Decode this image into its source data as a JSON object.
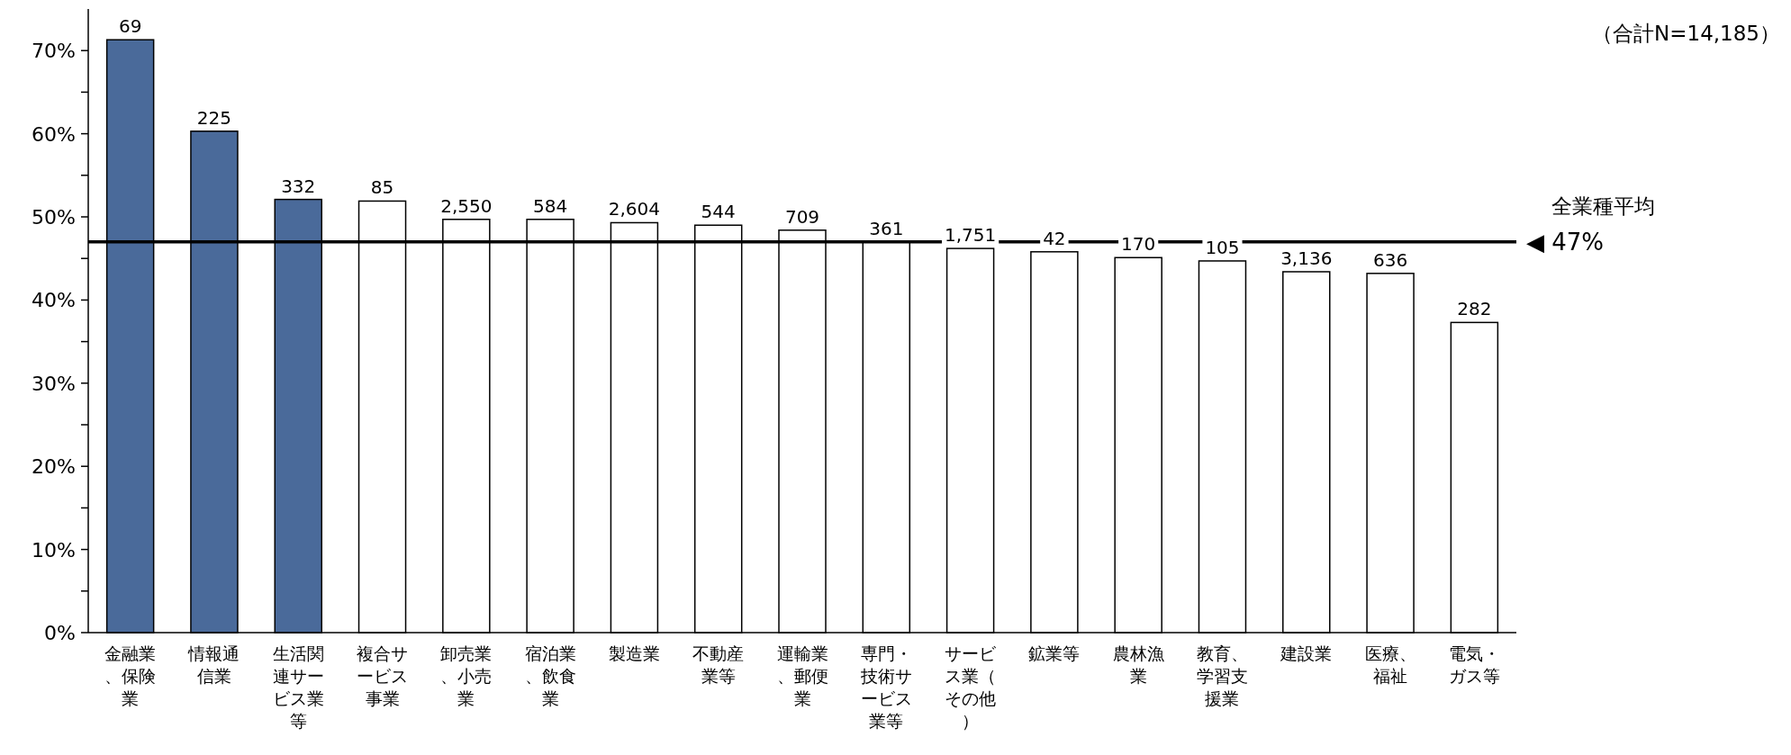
{
  "chart_data": {
    "type": "bar",
    "categories": [
      "金融業、保険業",
      "情報通信業",
      "生活関連サービス業等",
      "複合サービス事業",
      "卸売業、小売業",
      "宿泊業、飲食業",
      "製造業",
      "不動産業等",
      "運輸業、郵便業",
      "専門・技術サービス業等",
      "サービス業（その他）",
      "鉱業等",
      "農林漁業",
      "教育、学習支援業",
      "建設業",
      "医療、福祉",
      "電気・ガス等"
    ],
    "values": [
      71.3,
      60.3,
      52.1,
      51.9,
      49.7,
      49.7,
      49.3,
      49.0,
      48.4,
      47.0,
      46.2,
      45.8,
      45.1,
      44.7,
      43.4,
      43.2,
      37.3
    ],
    "colors": [
      "#4a6a9a",
      "#4a6a9a",
      "#4a6a9a",
      "#ffffff",
      "#ffffff",
      "#ffffff",
      "#ffffff",
      "#ffffff",
      "#ffffff",
      "#ffffff",
      "#ffffff",
      "#ffffff",
      "#ffffff",
      "#ffffff",
      "#ffffff",
      "#ffffff",
      "#ffffff"
    ],
    "ylim": [
      0,
      75
    ],
    "yticks": [
      {
        "value": 0,
        "label": "0%"
      },
      {
        "value": 5,
        "label": null
      },
      {
        "value": 10,
        "label": "10%"
      },
      {
        "value": 15,
        "label": null
      },
      {
        "value": 20,
        "label": "20%"
      },
      {
        "value": 25,
        "label": null
      },
      {
        "value": 30,
        "label": "30%"
      },
      {
        "value": 35,
        "label": null
      },
      {
        "value": 40,
        "label": "40%"
      },
      {
        "value": 45,
        "label": null
      },
      {
        "value": 50,
        "label": "50%"
      },
      {
        "value": 55,
        "label": null
      },
      {
        "value": 60,
        "label": "60%"
      },
      {
        "value": 65,
        "label": null
      },
      {
        "value": 70,
        "label": "70%"
      }
    ],
    "ref_lines": [
      {
        "axis": "y",
        "value": 47,
        "label": "全業種平均",
        "color": "#000000"
      }
    ],
    "annotations": [
      "◀ 47%",
      "（合計N=14,185）",
      {
        "text": "69",
        "x": "金融業、保険業",
        "y": 71.3
      },
      {
        "text": "225",
        "x": "情報通信業",
        "y": 60.3
      },
      {
        "text": "332",
        "x": "生活関連サービス業等",
        "y": 52.1
      },
      {
        "text": "85",
        "x": "複合サービス事業",
        "y": 51.9
      },
      {
        "text": "2,550",
        "x": "卸売業、小売業",
        "y": 49.7
      },
      {
        "text": "584",
        "x": "宿泊業、飲食業",
        "y": 49.7
      },
      {
        "text": "2,604",
        "x": "製造業",
        "y": 49.3
      },
      {
        "text": "544",
        "x": "不動産業等",
        "y": 49.0
      },
      {
        "text": "709",
        "x": "運輸業、郵便業",
        "y": 48.4
      },
      {
        "text": "361",
        "x": "専門・技術サービス業等",
        "y": 47.0
      },
      {
        "text": "1,751",
        "x": "サービス業（その他）",
        "y": 46.2
      },
      {
        "text": "42",
        "x": "鉱業等",
        "y": 45.8
      },
      {
        "text": "170",
        "x": "農林漁業",
        "y": 45.1
      },
      {
        "text": "105",
        "x": "教育、学習支援業",
        "y": 44.7
      },
      {
        "text": "3,136",
        "x": "建設業",
        "y": 43.4
      },
      {
        "text": "636",
        "x": "医療、福祉",
        "y": 43.2
      },
      {
        "text": "282",
        "x": "電気・ガス等",
        "y": 37.3
      }
    ],
    "grid": false
  }
}
